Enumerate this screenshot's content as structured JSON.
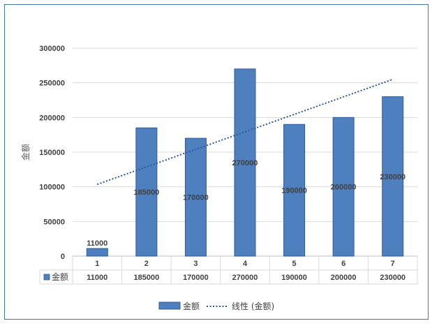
{
  "chart_data": {
    "type": "bar",
    "categories": [
      "1",
      "2",
      "3",
      "4",
      "5",
      "6",
      "7"
    ],
    "series": [
      {
        "name": "金额",
        "values": [
          11000,
          185000,
          170000,
          270000,
          190000,
          200000,
          230000
        ],
        "color": "#4e7fbf"
      }
    ],
    "trendline": {
      "name": "线性 (金额)",
      "type": "linear",
      "start": 103500,
      "end": 255000,
      "color": "#2b5597"
    },
    "data_labels": [
      "11000",
      "185000",
      "170000",
      "270000",
      "190000",
      "200000",
      "230000"
    ],
    "ylabel": "金额",
    "ylim": [
      0,
      300000
    ],
    "yticks": [
      0,
      50000,
      100000,
      150000,
      200000,
      250000,
      300000
    ],
    "ytick_labels": [
      "0",
      "50000",
      "100000",
      "150000",
      "200000",
      "250000",
      "300000"
    ],
    "grid": true,
    "data_table": true,
    "data_table_row_label": "金额",
    "legend_position": "bottom",
    "legend": [
      "金额",
      "线性 (金额)"
    ]
  }
}
